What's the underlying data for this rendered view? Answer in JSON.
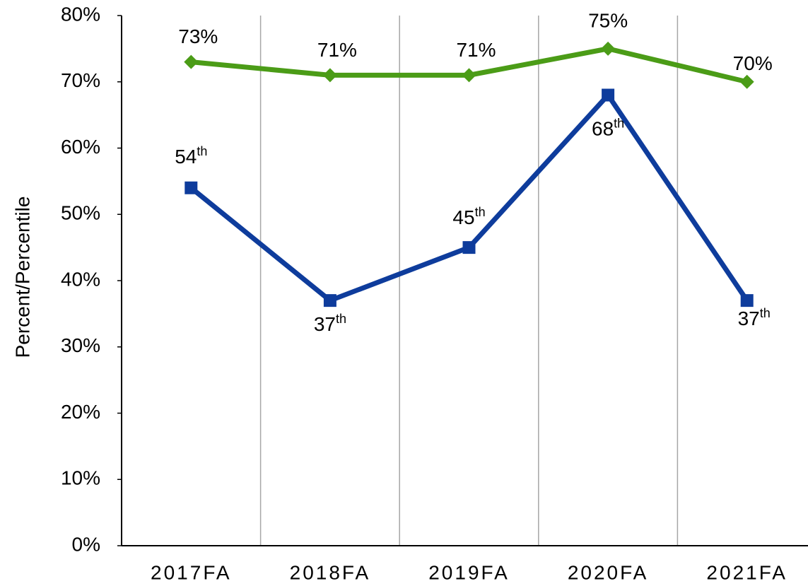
{
  "chart_data": {
    "type": "line",
    "ylabel": "Percent/Percentile",
    "categories": [
      "2017FA",
      "2018FA",
      "2019FA",
      "2020FA",
      "2021FA"
    ],
    "series": [
      {
        "color": "#4b9c17",
        "marker": "diamond",
        "values": [
          73,
          71,
          71,
          75,
          70
        ],
        "value_labels": [
          "73%",
          "71%",
          "71%",
          "75%",
          "70%"
        ]
      },
      {
        "color": "#0e3c9c",
        "marker": "square",
        "values": [
          54,
          37,
          45,
          68,
          37
        ],
        "value_labels": [
          "54th",
          "37th",
          "45th",
          "68th",
          "37th"
        ]
      }
    ],
    "ylim": [
      0,
      80
    ],
    "yticks": [
      {
        "value": 0,
        "label": "0%"
      },
      {
        "value": 10,
        "label": "10%"
      },
      {
        "value": 20,
        "label": "20%"
      },
      {
        "value": 30,
        "label": "30%"
      },
      {
        "value": 40,
        "label": "40%"
      },
      {
        "value": 50,
        "label": "50%"
      },
      {
        "value": 60,
        "label": "60%"
      },
      {
        "value": 70,
        "label": "70%"
      },
      {
        "value": 80,
        "label": "80%"
      }
    ],
    "x_grid": true
  }
}
